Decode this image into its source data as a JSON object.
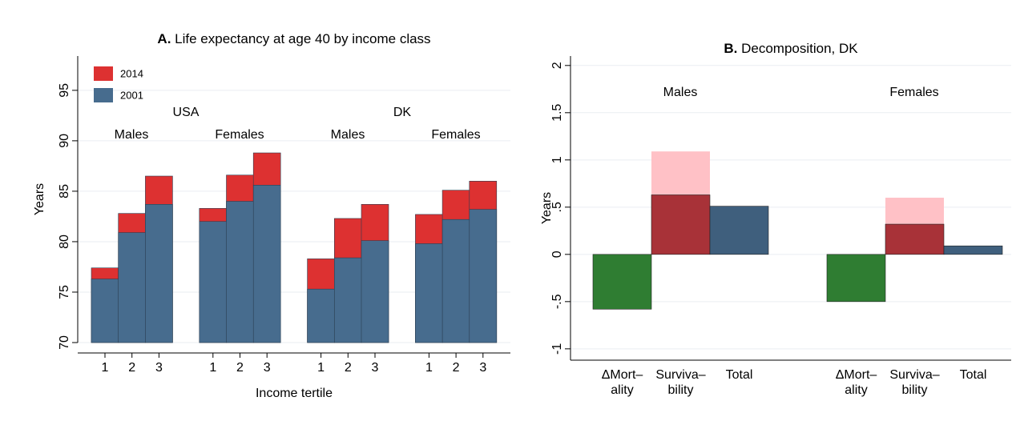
{
  "chart_data": [
    {
      "type": "bar",
      "title_prefix": "A.",
      "title": "Life expectancy at age 40 by income class",
      "x_label": "Income tertile",
      "y_label": "Years",
      "categories": [
        "1",
        "2",
        "3",
        "1",
        "2",
        "3",
        "1",
        "2",
        "3",
        "1",
        "2",
        "3"
      ],
      "annotations": [
        "USA",
        "Males",
        "Females",
        "DK",
        "Males",
        "Females"
      ],
      "series": [
        {
          "name": "2014",
          "color": "#dd3131",
          "values": [
            77.4,
            82.8,
            86.5,
            83.3,
            86.6,
            88.8,
            78.3,
            82.3,
            83.7,
            82.7,
            85.1,
            86.0
          ]
        },
        {
          "name": "2001",
          "color": "#476c8e",
          "values": [
            76.3,
            80.9,
            83.7,
            82.0,
            84.0,
            85.6,
            75.3,
            78.4,
            80.1,
            79.8,
            82.2,
            83.2
          ]
        }
      ],
      "ylim": [
        70,
        98.4
      ],
      "yticks": [
        70,
        75,
        80,
        85,
        90,
        95
      ],
      "grid": true,
      "legend": "top-left"
    },
    {
      "type": "bar",
      "title_prefix": "B.",
      "title": "Decomposition, DK",
      "y_label": "Years",
      "categories": [
        [
          "ΔMort–",
          "ality"
        ],
        [
          "Surviva–",
          "bility"
        ],
        [
          "Total"
        ],
        [
          "ΔMort–",
          "ality"
        ],
        [
          "Surviva–",
          "bility"
        ],
        [
          "Total"
        ]
      ],
      "annotations": [
        "Males",
        "Females"
      ],
      "values": [
        -0.58,
        0.63,
        0.51,
        -0.5,
        0.32,
        0.09
      ],
      "colors": [
        "#2f7d32",
        "#a83238",
        "#3f5f7d",
        "#2f7d32",
        "#a83238",
        "#3f5f7d"
      ],
      "upper_values": [
        null,
        1.09,
        null,
        null,
        0.6,
        null
      ],
      "upper_color": "#ffc1c6",
      "ylim": [
        -1.12,
        2.1
      ],
      "yticks": [
        {
          "value": -1,
          "label": "-1"
        },
        {
          "value": -0.5,
          "label": "-.5"
        },
        0,
        {
          "value": 0.5,
          "label": ".5"
        },
        1,
        {
          "value": 1.5,
          "label": "1.5"
        },
        2
      ],
      "grid": true
    }
  ]
}
